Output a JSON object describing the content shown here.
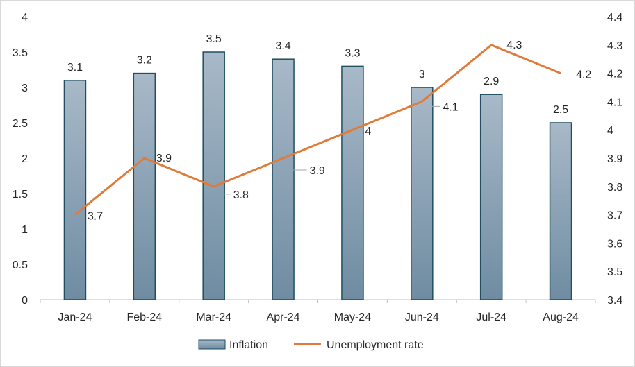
{
  "chart_data": {
    "type": "bar",
    "categories": [
      "Jan-24",
      "Feb-24",
      "Mar-24",
      "Apr-24",
      "May-24",
      "Jun-24",
      "Jul-24",
      "Aug-24"
    ],
    "series": [
      {
        "name": "Inflation",
        "type": "bar",
        "axis": "left",
        "values": [
          3.1,
          3.2,
          3.5,
          3.4,
          3.3,
          3,
          2.9,
          2.5
        ],
        "labels": [
          "3.1",
          "3.2",
          "3.5",
          "3.4",
          "3.3",
          "3",
          "2.9",
          "2.5"
        ],
        "color": "#8aa2b6",
        "border_color": "#1f4e63"
      },
      {
        "name": "Unemployment rate",
        "type": "line",
        "axis": "right",
        "values": [
          3.7,
          3.9,
          3.8,
          3.9,
          4.0,
          4.1,
          4.3,
          4.2
        ],
        "labels": [
          "3.7",
          "3.9",
          "3.8",
          "3.9",
          "4",
          "4.1",
          "4.3",
          "4.2"
        ],
        "color": "#e07b39"
      }
    ],
    "y_left": {
      "lim": [
        0,
        4
      ],
      "ticks": [
        "0",
        "0.5",
        "1",
        "1.5",
        "2",
        "2.5",
        "3",
        "3.5",
        "4"
      ]
    },
    "y_right": {
      "lim": [
        3.4,
        4.4
      ],
      "ticks": [
        "3.4",
        "3.5",
        "3.6",
        "3.7",
        "3.8",
        "3.9",
        "4",
        "4.1",
        "4.2",
        "4.3",
        "4.4"
      ]
    },
    "title": "",
    "xlabel": "",
    "ylabel": "",
    "grid": false,
    "legend": "bottom"
  }
}
